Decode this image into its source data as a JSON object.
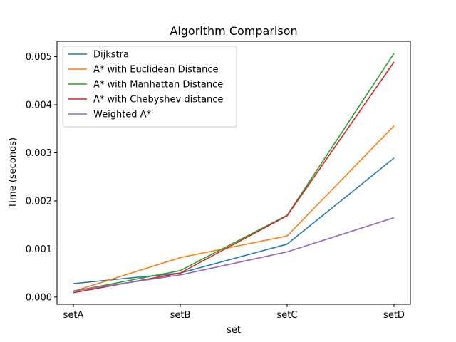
{
  "chart_data": {
    "type": "line",
    "title": "Algorithm Comparison",
    "xlabel": "set",
    "ylabel": "Time (seconds)",
    "categories": [
      "setA",
      "setB",
      "setC",
      "setD"
    ],
    "ylim": [
      -0.00015,
      0.00532
    ],
    "yticks": [
      0.0,
      0.001,
      0.002,
      0.003,
      0.004,
      0.005
    ],
    "ytick_labels": [
      "0.000",
      "0.001",
      "0.002",
      "0.003",
      "0.004",
      "0.005"
    ],
    "grid": false,
    "legend_position": "top-left",
    "series": [
      {
        "name": "Dijkstra",
        "color": "#1f77b4",
        "values": [
          0.00028,
          0.0005,
          0.0011,
          0.00289
        ]
      },
      {
        "name": "A* with Euclidean Distance",
        "color": "#ff7f0e",
        "values": [
          0.00012,
          0.00082,
          0.00127,
          0.00356
        ]
      },
      {
        "name": "A* with Manhattan Distance",
        "color": "#2ca02c",
        "values": [
          0.00012,
          0.00055,
          0.0017,
          0.00507
        ]
      },
      {
        "name": "A* with Chebyshev distance",
        "color": "#d62728",
        "values": [
          9e-05,
          0.0005,
          0.00169,
          0.00489
        ]
      },
      {
        "name": "Weighted A*",
        "color": "#9467bd",
        "values": [
          0.00013,
          0.00046,
          0.00094,
          0.00165
        ]
      }
    ]
  }
}
